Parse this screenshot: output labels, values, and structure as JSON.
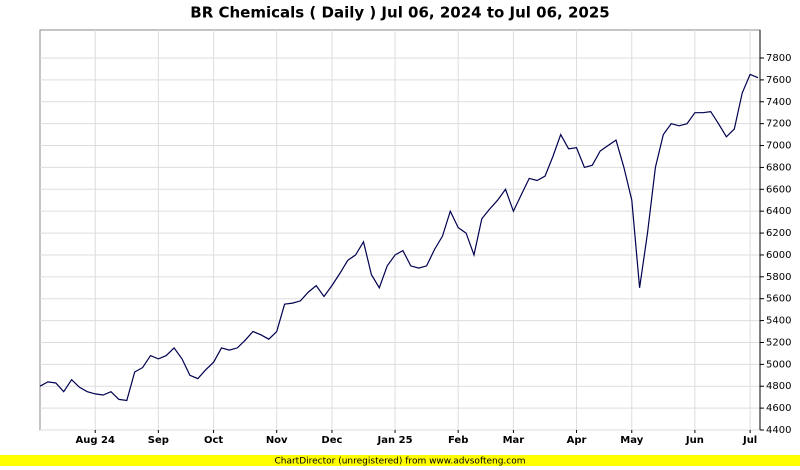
{
  "chart_data": {
    "type": "line",
    "title": "BR Chemicals ( Daily ) Jul 06, 2024 to Jul 06, 2025",
    "footer": "ChartDirector (unregistered) from www.advsofteng.com",
    "categories": [
      null,
      null,
      null,
      null,
      null,
      null,
      null,
      "Aug 24",
      null,
      null,
      null,
      null,
      null,
      null,
      null,
      "Sep",
      null,
      null,
      null,
      null,
      null,
      null,
      "Oct",
      null,
      null,
      null,
      null,
      null,
      null,
      null,
      "Nov",
      null,
      null,
      null,
      null,
      null,
      null,
      "Dec",
      null,
      null,
      null,
      null,
      null,
      null,
      null,
      "Jan 25",
      null,
      null,
      null,
      null,
      null,
      null,
      null,
      "Feb",
      null,
      null,
      null,
      null,
      null,
      null,
      "Mar",
      null,
      null,
      null,
      null,
      null,
      null,
      null,
      "Apr",
      null,
      null,
      null,
      null,
      null,
      null,
      "May",
      null,
      null,
      null,
      null,
      null,
      null,
      null,
      "Jun",
      null,
      null,
      null,
      null,
      null,
      null,
      "Jul",
      null
    ],
    "values": [
      4800,
      4840,
      4830,
      4750,
      4860,
      4790,
      4750,
      4730,
      4720,
      4750,
      4680,
      4670,
      4930,
      4970,
      5080,
      5050,
      5080,
      5150,
      5050,
      4900,
      4870,
      4950,
      5020,
      5150,
      5130,
      5150,
      5220,
      5300,
      5270,
      5230,
      5300,
      5550,
      5560,
      5580,
      5660,
      5720,
      5620,
      5720,
      5830,
      5950,
      6000,
      6120,
      5820,
      5700,
      5900,
      6000,
      6040,
      5900,
      5880,
      5900,
      6050,
      6170,
      6400,
      6250,
      6200,
      6000,
      6330,
      6420,
      6500,
      6600,
      6400,
      6550,
      6700,
      6680,
      6720,
      6900,
      7100,
      6970,
      6980,
      6800,
      6820,
      6950,
      7000,
      7050,
      6800,
      6500,
      5700,
      6200,
      6800,
      7100,
      7200,
      7180,
      7200,
      7300,
      7300,
      7310,
      7200,
      7080,
      7150,
      7480,
      7650,
      7620
    ],
    "color": "#000050",
    "ylim": [
      4400,
      8056
    ],
    "yticks": [
      4400,
      4600,
      4800,
      5000,
      5200,
      5400,
      5600,
      5800,
      6000,
      6200,
      6400,
      6600,
      6800,
      7000,
      7200,
      7400,
      7600,
      7800
    ],
    "grid": true
  }
}
